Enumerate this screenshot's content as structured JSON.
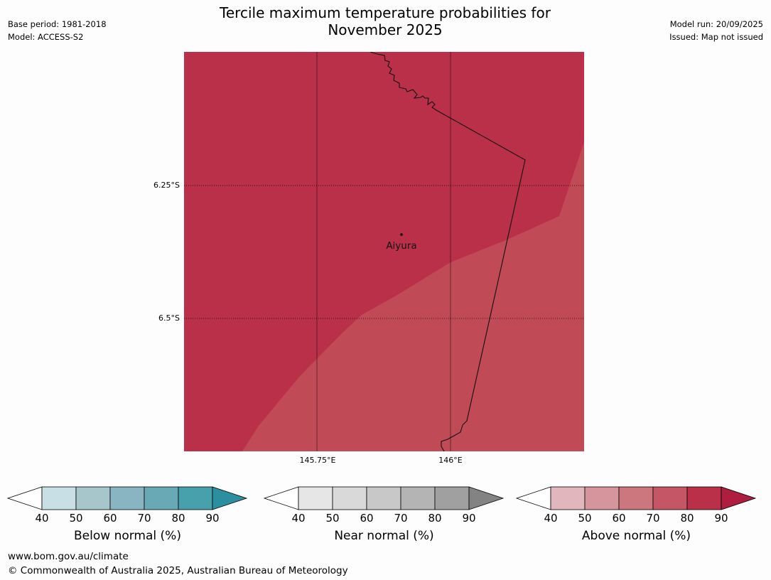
{
  "title_line1": "Tercile maximum temperature probabilities for",
  "title_line2": "November 2025",
  "meta_left": {
    "base_period": "Base period: 1981-2018",
    "model": "Model: ACCESS-S2"
  },
  "meta_right": {
    "model_run": "Model run: 20/09/2025",
    "issued": "Issued: Map not issued"
  },
  "map": {
    "lat_labels": [
      "6.25°S",
      "6.5°S"
    ],
    "lon_labels": [
      "145.75°E",
      "146°E"
    ],
    "place": "Aiyura",
    "colors": {
      "dark": "#bb3049",
      "light": "#c04a56",
      "border": "#111111"
    }
  },
  "legends": [
    {
      "name": "below",
      "title": "Below normal (%)",
      "ticks": [
        "40",
        "50",
        "60",
        "70",
        "80",
        "90"
      ],
      "colors": [
        "#ffffff",
        "#c8e0e5",
        "#a7c6cc",
        "#88b5c1",
        "#69a9b6",
        "#47a1ad",
        "#2c8fa0"
      ]
    },
    {
      "name": "near",
      "title": "Near normal (%)",
      "ticks": [
        "40",
        "50",
        "60",
        "70",
        "80",
        "90"
      ],
      "colors": [
        "#ffffff",
        "#e6e6e6",
        "#d9d9d9",
        "#c8c8c8",
        "#b4b4b4",
        "#a0a0a0",
        "#838383"
      ]
    },
    {
      "name": "above",
      "title": "Above normal (%)",
      "ticks": [
        "40",
        "50",
        "60",
        "70",
        "80",
        "90"
      ],
      "colors": [
        "#ffffff",
        "#e1b6bc",
        "#d5959c",
        "#cc767e",
        "#c45665",
        "#bb3049",
        "#ae1e3e"
      ]
    }
  ],
  "footer": {
    "url": "www.bom.gov.au/climate",
    "copyright": "© Commonwealth of Australia 2025, Australian Bureau of Meteorology"
  }
}
